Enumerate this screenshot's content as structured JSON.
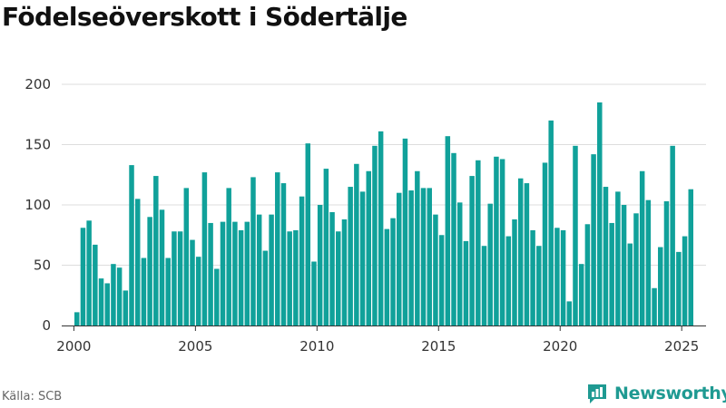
{
  "title": "Födelseöverskott i Södertälje",
  "source": "Källa: SCB",
  "brand": "Newsworthy",
  "colors": {
    "bar": "#10a19a",
    "grid": "#dddddd",
    "axis": "#333333",
    "brand": "#1f9a92"
  },
  "chart_data": {
    "type": "bar",
    "title": "Födelseöverskott i Södertälje",
    "xlabel": "",
    "ylabel": "",
    "ylim": [
      0,
      200
    ],
    "xlim": [
      1999.5,
      2026.0
    ],
    "yticks": [
      0,
      50,
      100,
      150,
      200
    ],
    "xticks": [
      2000,
      2005,
      2010,
      2015,
      2020,
      2025
    ],
    "grid": true,
    "x_start": "2000-Q1",
    "frequency": "quarterly",
    "values": [
      11,
      81,
      87,
      67,
      39,
      35,
      51,
      48,
      29,
      133,
      105,
      56,
      90,
      124,
      96,
      56,
      78,
      78,
      114,
      71,
      57,
      127,
      85,
      47,
      86,
      114,
      86,
      79,
      86,
      123,
      92,
      62,
      92,
      127,
      118,
      78,
      79,
      107,
      151,
      53,
      100,
      130,
      94,
      78,
      88,
      115,
      134,
      111,
      128,
      149,
      161,
      80,
      89,
      110,
      155,
      112,
      128,
      114,
      114,
      92,
      75,
      157,
      143,
      102,
      70,
      124,
      137,
      66,
      101,
      140,
      138,
      74,
      88,
      122,
      118,
      79,
      66,
      135,
      170,
      81,
      79,
      20,
      149,
      51,
      84,
      142,
      185,
      115,
      85,
      111,
      100,
      68,
      93,
      128,
      104,
      31,
      65,
      103,
      149,
      61,
      74,
      113
    ]
  }
}
